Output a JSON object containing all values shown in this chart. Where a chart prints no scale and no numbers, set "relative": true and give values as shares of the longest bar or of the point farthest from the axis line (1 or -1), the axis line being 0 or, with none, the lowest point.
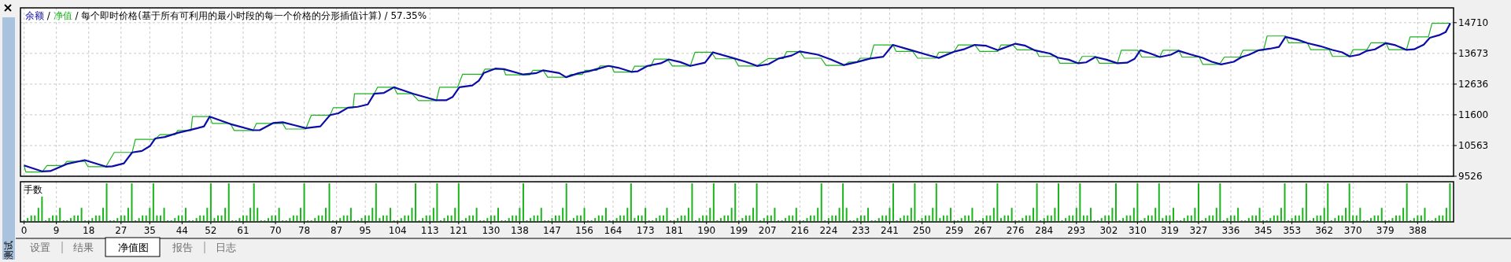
{
  "chart_data": [
    {
      "type": "line",
      "annotations": [
        "/"
      ],
      "title": "/ 每个即时价格(基于所有可利用的最小时段的每一个价格的分形插值计算) / 57.35%",
      "legend": "top left",
      "grid": true,
      "tick_labels": "y",
      "xlim": [
        -1,
        398
      ],
      "xticks": [
        0,
        9,
        18,
        27,
        35,
        44,
        52,
        61,
        70,
        78,
        87,
        95,
        104,
        113,
        121,
        130,
        138,
        147,
        156,
        164,
        173,
        181,
        190,
        199,
        207,
        216,
        224,
        233,
        241,
        250,
        259,
        267,
        276,
        284,
        293,
        302,
        310,
        319,
        327,
        336,
        345,
        353,
        362,
        370,
        379,
        388
      ],
      "ylim": [
        9526,
        15210
      ],
      "yticks": [
        9526,
        10563,
        11600,
        12636,
        13673,
        14710
      ],
      "series": [
        {
          "name": "余额",
          "color": "#0c0ca8",
          "x": [
            0,
            5.0,
            7.3,
            11.9,
            16.9,
            22.8,
            24.6,
            27.8,
            30.1,
            32.8,
            35.1,
            36.5,
            39.2,
            42.8,
            45.6,
            48.3,
            50.1,
            51.7,
            57.4,
            63.8,
            65.6,
            69.3,
            72.0,
            75.6,
            78.4,
            82.5,
            85.2,
            87.5,
            90.2,
            92.9,
            95.7,
            97.5,
            100.2,
            103.0,
            108.4,
            114.8,
            117.5,
            119.3,
            121.2,
            124.8,
            126.6,
            128.0,
            131.2,
            133.6,
            139.0,
            142.7,
            144.5,
            149.0,
            150.9,
            154.5,
            157.2,
            162.7,
            165.4,
            169.1,
            170.9,
            173.6,
            177.3,
            179.5,
            182.7,
            185.5,
            189.6,
            191.8,
            197.3,
            200.9,
            204.1,
            207.3,
            210.1,
            213.7,
            216.0,
            221.0,
            224.6,
            228.3,
            231.9,
            235.6,
            239.2,
            241.9,
            246.5,
            251.9,
            254.7,
            259.2,
            261.9,
            264.7,
            267.9,
            271.1,
            276.0,
            278.6,
            281.3,
            285.6,
            287.8,
            290.9,
            293.5,
            295.7,
            298.3,
            301.4,
            304.4,
            307.1,
            309.2,
            310.8,
            313.6,
            316.2,
            319.3,
            321.5,
            325.0,
            328.0,
            330.7,
            333.3,
            336.8,
            339.0,
            341.1,
            343.8,
            346.8,
            349.4,
            351.2,
            354.7,
            357.3,
            360.8,
            364.3,
            367.0,
            369.1,
            371.7,
            373.9,
            376.1,
            379.2,
            381.8,
            384.9,
            387.0,
            389.7,
            391.4,
            394.0,
            395.8,
            397.1
          ],
          "values": [
            9890,
            9690,
            9700,
            9940,
            10070,
            9850,
            9860,
            9960,
            10330,
            10380,
            10550,
            10800,
            10850,
            10990,
            11070,
            11150,
            11210,
            11540,
            11290,
            11080,
            11080,
            11320,
            11350,
            11240,
            11150,
            11210,
            11590,
            11650,
            11840,
            11870,
            11950,
            12310,
            12340,
            12530,
            12310,
            12090,
            12090,
            12200,
            12530,
            12590,
            12750,
            13010,
            13160,
            13140,
            12960,
            13010,
            13100,
            13010,
            12870,
            13010,
            13070,
            13250,
            13190,
            13050,
            13070,
            13250,
            13340,
            13470,
            13380,
            13250,
            13360,
            13710,
            13520,
            13390,
            13250,
            13310,
            13500,
            13600,
            13740,
            13630,
            13470,
            13280,
            13380,
            13500,
            13560,
            13960,
            13800,
            13610,
            13520,
            13740,
            13820,
            13960,
            13930,
            13780,
            14000,
            13940,
            13780,
            13670,
            13530,
            13460,
            13340,
            13370,
            13550,
            13460,
            13340,
            13360,
            13490,
            13780,
            13670,
            13550,
            13630,
            13760,
            13630,
            13530,
            13390,
            13300,
            13390,
            13550,
            13630,
            13780,
            13830,
            13890,
            14230,
            14130,
            14020,
            13920,
            13790,
            13710,
            13570,
            13630,
            13760,
            13810,
            14020,
            13950,
            13790,
            13810,
            13970,
            14200,
            14290,
            14390,
            14690
          ]
        },
        {
          "name": "净值",
          "color": "#1cb41c",
          "x": [
            0,
            0.5,
            5.0,
            6.4,
            11.0,
            11.9,
            16.9,
            17.8,
            22.8,
            25.1,
            30.1,
            31.0,
            36.5,
            37.8,
            42.0,
            42.8,
            46.5,
            46.9,
            51.7,
            52.4,
            57.4,
            58.5,
            63.8,
            64.7,
            72.0,
            72.9,
            78.4,
            80.0,
            85.2,
            86.1,
            91.6,
            92.0,
            97.5,
            98.4,
            103.0,
            103.9,
            108.0,
            109.8,
            114.8,
            115.7,
            120.7,
            122.1,
            127.5,
            128.3,
            133.5,
            134.1,
            140.8,
            141.7,
            144.5,
            145.8,
            150.9,
            152.2,
            155.4,
            156.3,
            159.5,
            160.4,
            163.6,
            164.3,
            169.1,
            170.0,
            174.5,
            175.4,
            179.1,
            180.5,
            185.5,
            186.8,
            191.4,
            192.6,
            197.8,
            198.9,
            204.1,
            207.1,
            211.4,
            212.3,
            216.0,
            217.3,
            221.9,
            223.3,
            228.3,
            229.6,
            231.9,
            232.8,
            235.6,
            236.6,
            241.9,
            242.8,
            247.4,
            248.8,
            253.8,
            254.7,
            258.8,
            260.1,
            264.7,
            266.1,
            271.1,
            272.0,
            275.3,
            276.5,
            281.7,
            282.6,
            287.4,
            288.4,
            293.5,
            294.6,
            298.3,
            299.4,
            304.4,
            305.5,
            310.1,
            311.2,
            316.2,
            317.1,
            321.5,
            322.4,
            327.2,
            328.2,
            332.8,
            334.2,
            338.5,
            339.4,
            345.1,
            346.1,
            351.2,
            352.1,
            357.3,
            358.2,
            363.4,
            364.3,
            369.1,
            370.0,
            373.9,
            375.0,
            379.2,
            380.0,
            384.9,
            385.9,
            391.0,
            392.0,
            397.1
          ],
          "values": [
            9890,
            9670,
            9670,
            9890,
            9890,
            10030,
            10030,
            9850,
            9850,
            10330,
            10330,
            10770,
            10770,
            10930,
            10930,
            11070,
            11070,
            11540,
            11540,
            11310,
            11310,
            11070,
            11070,
            11310,
            11310,
            11120,
            11120,
            11590,
            11590,
            11840,
            11840,
            12310,
            12310,
            12530,
            12530,
            12310,
            12310,
            12080,
            12080,
            12530,
            12530,
            12970,
            12970,
            13140,
            13140,
            12950,
            12950,
            13100,
            13100,
            12870,
            12870,
            12960,
            12960,
            13100,
            13100,
            13250,
            13250,
            13040,
            13040,
            13240,
            13240,
            13480,
            13480,
            13250,
            13250,
            13710,
            13710,
            13490,
            13490,
            13250,
            13250,
            13500,
            13500,
            13730,
            13730,
            13510,
            13510,
            13270,
            13270,
            13380,
            13380,
            13510,
            13510,
            13960,
            13960,
            13740,
            13740,
            13510,
            13510,
            13710,
            13710,
            13960,
            13960,
            13740,
            13740,
            13960,
            13960,
            13790,
            13790,
            13570,
            13570,
            13340,
            13340,
            13570,
            13570,
            13340,
            13340,
            13780,
            13780,
            13550,
            13550,
            13780,
            13780,
            13550,
            13550,
            13300,
            13300,
            13550,
            13550,
            13780,
            13780,
            14260,
            14260,
            14030,
            14030,
            13800,
            13800,
            13570,
            13570,
            13800,
            13800,
            14030,
            14030,
            13800,
            13800,
            14230,
            14230,
            14690,
            14690
          ]
        }
      ]
    },
    {
      "type": "bar",
      "title": "手数",
      "relative": true,
      "grid": "x",
      "tick_labels": "x",
      "color": "#1cb41c",
      "xlim": [
        -1,
        398
      ],
      "xticks": [
        0,
        9,
        18,
        27,
        35,
        44,
        52,
        61,
        70,
        78,
        87,
        95,
        104,
        113,
        121,
        130,
        138,
        147,
        156,
        164,
        173,
        181,
        190,
        199,
        207,
        216,
        224,
        233,
        241,
        250,
        259,
        267,
        276,
        284,
        293,
        302,
        310,
        319,
        327,
        336,
        345,
        353,
        362,
        370,
        379,
        388
      ],
      "x": [
        0,
        1,
        2,
        3,
        4,
        5,
        6,
        7,
        8,
        9,
        10,
        11,
        12,
        13,
        14,
        15,
        16,
        17,
        18,
        19,
        20,
        21,
        22,
        23,
        24,
        25,
        26,
        27,
        28,
        29,
        30,
        31,
        32,
        33,
        34,
        35,
        36,
        37,
        38,
        39,
        40,
        41,
        42,
        43,
        44,
        45,
        46,
        47,
        48,
        49,
        50,
        51,
        52,
        53,
        54,
        55,
        56,
        57,
        58,
        59,
        60,
        61,
        62,
        63,
        64,
        65,
        66,
        67,
        68,
        69,
        70,
        71,
        72,
        73,
        74,
        75,
        76,
        77,
        78,
        79,
        80,
        81,
        82,
        83,
        84,
        85,
        86,
        87,
        88,
        89,
        90,
        91,
        92,
        93,
        94,
        95,
        96,
        97,
        98,
        99,
        100,
        101,
        102,
        103,
        104,
        105,
        106,
        107,
        108,
        109,
        110,
        111,
        112,
        113,
        114,
        115,
        116,
        117,
        118,
        119,
        120,
        121,
        122,
        123,
        124,
        125,
        126,
        127,
        128,
        129,
        130,
        131,
        132,
        133,
        134,
        135,
        136,
        137,
        138,
        139,
        140,
        141,
        142,
        143,
        144,
        145,
        146,
        147,
        148,
        149,
        150,
        151,
        152,
        153,
        154,
        155,
        156,
        157,
        158,
        159,
        160,
        161,
        162,
        163,
        164,
        165,
        166,
        167,
        168,
        169,
        170,
        171,
        172,
        173,
        174,
        175,
        176,
        177,
        178,
        179,
        180,
        181,
        182,
        183,
        184,
        185,
        186,
        187,
        188,
        189,
        190,
        191,
        192,
        193,
        194,
        195,
        196,
        197,
        198,
        199,
        200,
        201,
        202,
        203,
        204,
        205,
        206,
        207,
        208,
        209,
        210,
        211,
        212,
        213,
        214,
        215,
        216,
        217,
        218,
        219,
        220,
        221,
        222,
        223,
        224,
        225,
        226,
        227,
        228,
        229,
        230,
        231,
        232,
        233,
        234,
        235,
        236,
        237,
        238,
        239,
        240,
        241,
        242,
        243,
        244,
        245,
        246,
        247,
        248,
        249,
        250,
        251,
        252,
        253,
        254,
        255,
        256,
        257,
        258,
        259,
        260,
        261,
        262,
        263,
        264,
        265,
        266,
        267,
        268,
        269,
        270,
        271,
        272,
        273,
        274,
        275,
        276,
        277,
        278,
        279,
        280,
        281,
        282,
        283,
        284,
        285,
        286,
        287,
        288,
        289,
        290,
        291,
        292,
        293,
        294,
        295,
        296,
        297,
        298,
        299,
        300,
        301,
        302,
        303,
        304,
        305,
        306,
        307,
        308,
        309,
        310,
        311,
        312,
        313,
        314,
        315,
        316,
        317,
        318,
        319,
        320,
        321,
        322,
        323,
        324,
        325,
        326,
        327,
        328,
        329,
        330,
        331,
        332,
        333,
        334,
        335,
        336,
        337,
        338,
        339,
        340,
        341,
        342,
        343,
        344,
        345,
        346,
        347,
        348,
        349,
        350,
        351,
        352,
        353,
        354,
        355,
        356,
        357,
        358,
        359,
        360,
        361,
        362,
        363,
        364,
        365,
        366,
        367,
        368,
        369,
        370,
        371,
        372,
        373,
        374,
        375,
        376,
        377,
        378,
        379,
        380,
        381,
        382,
        383,
        384,
        385,
        386,
        387,
        388,
        389,
        390,
        391,
        392,
        393,
        394,
        395,
        396,
        397
      ],
      "values": [
        0.02,
        0.08,
        0.15,
        0.15,
        0.35,
        0.65,
        0.02,
        0.08,
        0.15,
        0.15,
        0.35,
        0.02,
        0.02,
        0.08,
        0.15,
        0.15,
        0.35,
        0.02,
        0.02,
        0.08,
        0.15,
        0.15,
        0.35,
        1,
        0.02,
        0.02,
        0.08,
        0.15,
        0.15,
        0.35,
        1,
        0.02,
        0.08,
        0.15,
        0.15,
        0.35,
        1,
        0.15,
        0.15,
        0.35,
        0.02,
        0.02,
        0.08,
        0.15,
        0.15,
        0.35,
        0.02,
        0.02,
        0.08,
        0.15,
        0.15,
        0.35,
        1,
        0.08,
        0.15,
        0.15,
        0.35,
        1,
        0.02,
        0.02,
        0.08,
        0.15,
        0.15,
        0.35,
        1,
        0.35,
        0.02,
        0.02,
        0.08,
        0.15,
        0.15,
        0.35,
        0.02,
        0.02,
        0.08,
        0.15,
        0.15,
        0.35,
        1,
        0.02,
        0.02,
        0.08,
        0.15,
        0.15,
        0.35,
        1,
        0.02,
        0.02,
        0.08,
        0.15,
        0.15,
        0.35,
        0.02,
        0.02,
        0.08,
        0.15,
        0.15,
        0.35,
        1,
        0.08,
        0.15,
        0.15,
        0.35,
        0.02,
        0.02,
        0.08,
        0.15,
        0.15,
        0.35,
        1,
        0.02,
        0.08,
        0.15,
        0.15,
        0.35,
        1,
        0.02,
        0.08,
        0.15,
        0.15,
        0.35,
        1,
        0.02,
        0.08,
        0.15,
        0.15,
        0.35,
        0.02,
        0.02,
        0.08,
        0.15,
        0.15,
        0.35,
        0.02,
        0.02,
        0.08,
        0.15,
        0.15,
        0.35,
        1,
        0.02,
        0.08,
        0.15,
        0.15,
        0.35,
        0.02,
        0.02,
        0.08,
        0.15,
        0.15,
        0.35,
        1,
        0.02,
        0.08,
        0.15,
        0.15,
        0.35,
        0.02,
        0.02,
        0.08,
        0.15,
        0.15,
        0.35,
        0.02,
        0.02,
        0.08,
        0.15,
        0.15,
        0.35,
        1,
        0.08,
        0.15,
        0.15,
        0.35,
        0.02,
        0.02,
        0.08,
        0.15,
        0.15,
        0.35,
        0.02,
        0.02,
        0.08,
        0.15,
        0.15,
        0.35,
        1,
        0.02,
        0.08,
        0.15,
        0.15,
        0.35,
        1,
        0.02,
        0.08,
        0.15,
        0.15,
        0.35,
        1,
        0.02,
        0.08,
        0.15,
        0.15,
        0.35,
        1,
        0.02,
        0.08,
        0.15,
        0.15,
        0.35,
        0.02,
        0.02,
        0.08,
        0.15,
        0.15,
        0.35,
        0.02,
        0.02,
        0.08,
        0.15,
        0.15,
        0.35,
        1,
        0.02,
        0.08,
        0.15,
        0.15,
        0.35,
        1,
        0.35,
        0.02,
        0.02,
        0.08,
        0.15,
        0.15,
        0.35,
        0.02,
        0.02,
        0.08,
        0.15,
        0.15,
        0.35,
        1,
        0.02,
        0.08,
        0.15,
        0.15,
        0.35,
        1,
        0.02,
        0.08,
        0.15,
        0.15,
        0.35,
        1,
        0.08,
        0.15,
        0.15,
        0.35,
        0.02,
        0.02,
        0.08,
        0.15,
        0.15,
        0.35,
        0.02,
        0.02,
        0.08,
        0.15,
        0.15,
        0.35,
        1,
        0.08,
        0.15,
        0.15,
        0.35,
        0.02,
        0.02,
        0.08,
        0.15,
        0.15,
        0.35,
        1,
        0.02,
        0.08,
        0.15,
        0.15,
        0.35,
        1,
        0.02,
        0.08,
        0.15,
        0.15,
        0.35,
        1,
        0.15,
        0.15,
        0.35,
        0.02,
        0.02,
        0.08,
        0.15,
        0.15,
        0.35,
        1,
        0.02,
        0.08,
        0.15,
        0.15,
        0.35,
        1,
        0.02,
        0.08,
        0.15,
        0.15,
        0.35,
        1,
        0.08,
        0.15,
        0.15,
        0.35,
        0.02,
        0.02,
        0.08,
        0.15,
        0.15,
        0.35,
        1,
        0.02,
        0.08,
        0.15,
        0.15,
        0.35,
        1,
        0.02,
        0.08,
        0.15,
        0.15,
        0.35,
        0.02,
        0.02,
        0.08,
        0.15,
        0.15,
        0.35,
        0.02,
        0.02,
        0.08,
        0.15,
        0.15,
        0.35,
        1,
        0.02,
        0.08,
        0.15,
        0.15,
        0.35,
        1,
        0.02,
        0.08,
        0.15,
        0.15,
        0.35,
        1,
        0.02,
        0.08,
        0.15,
        0.15,
        0.35,
        1,
        0.15,
        0.15,
        0.35,
        0.02,
        0.02,
        0.08,
        0.15,
        0.15,
        0.35,
        0.02,
        0.02,
        0.08,
        0.15,
        0.15,
        0.35,
        1,
        0.02,
        0.08,
        0.15,
        0.15,
        0.35,
        0.02,
        0.02,
        0.08,
        0.15,
        0.15,
        0.35,
        1
      ]
    },
    {
      "type": "other",
      "annotations": [
        "设置",
        "结果",
        "净值图",
        "报告",
        "日志",
        "测试"
      ]
    }
  ]
}
